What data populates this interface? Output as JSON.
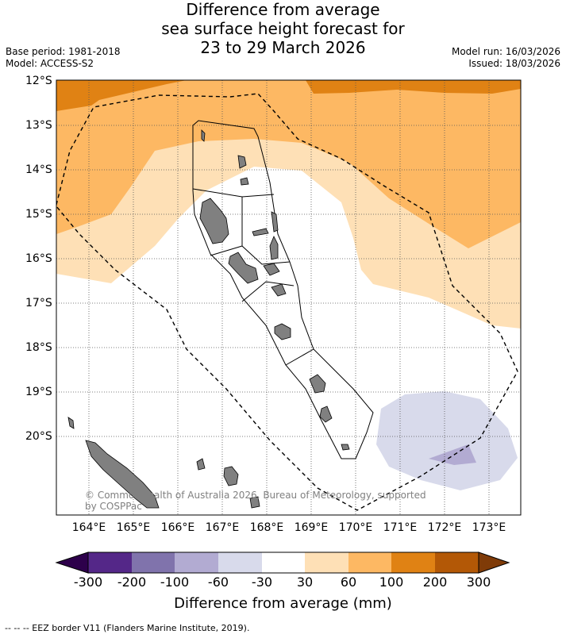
{
  "title": {
    "line1": "Difference from average",
    "line2": "sea surface height forecast for",
    "line3": "23 to 29 March 2026"
  },
  "meta": {
    "base_period": "Base period: 1981-2018",
    "model": "Model: ACCESS-S2",
    "model_run": "Model run: 16/03/2026",
    "issued": "Issued: 18/03/2026"
  },
  "x_axis": {
    "labels": [
      "164°E",
      "165°E",
      "166°E",
      "167°E",
      "168°E",
      "169°E",
      "170°E",
      "171°E",
      "172°E",
      "173°E"
    ]
  },
  "y_axis": {
    "labels": [
      "12°S",
      "13°S",
      "14°S",
      "15°S",
      "16°S",
      "17°S",
      "18°S",
      "19°S",
      "20°S"
    ]
  },
  "colorbar": {
    "title": "Difference from average (mm)",
    "labels": [
      "-300",
      "-200",
      "-100",
      "-60",
      "-30",
      "30",
      "60",
      "100",
      "200",
      "300"
    ],
    "colors": [
      "#2d004b",
      "#542788",
      "#8073ac",
      "#b2abd2",
      "#d8daeb",
      "#ffffff",
      "#fee0b6",
      "#fdb863",
      "#e08214",
      "#b35806",
      "#7f3b08"
    ]
  },
  "copyright": "© Commonwealth of Australia 2026, Bureau of Meteorology, supported by COSPPac",
  "footer": "-- -- -- EEZ border V11 (Flanders Marine Institute, 2019).",
  "legend_colors": {
    "land": "#808080",
    "eez_line": "#000000"
  }
}
